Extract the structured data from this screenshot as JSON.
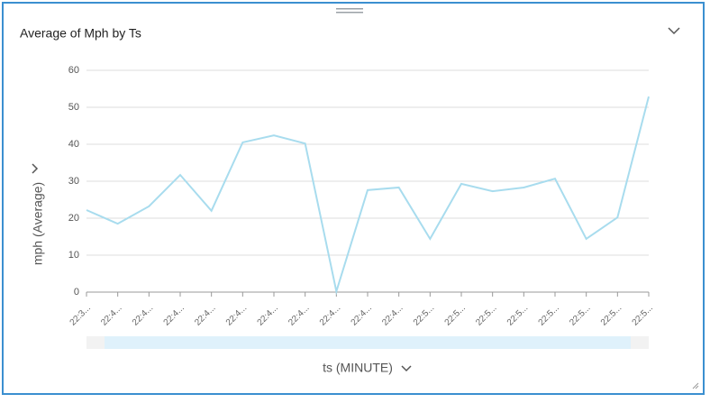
{
  "chart_data": {
    "type": "line",
    "title": "Average of Mph by Ts",
    "x_label": "ts (MINUTE)",
    "y_label": "mph (Average)",
    "categories": [
      "22:3...",
      "22:4...",
      "22:4...",
      "22:4...",
      "22:4...",
      "22:4...",
      "22:4...",
      "22:4...",
      "22:4...",
      "22:4...",
      "22:4...",
      "22:5...",
      "22:5...",
      "22:5...",
      "22:5...",
      "22:5...",
      "22:5...",
      "22:5...",
      "22:5..."
    ],
    "values": [
      22.2,
      18.5,
      23.2,
      31.7,
      22.0,
      40.5,
      42.4,
      40.2,
      0.2,
      27.6,
      28.3,
      14.4,
      29.3,
      27.3,
      28.3,
      30.7,
      14.4,
      20.2,
      52.9
    ],
    "color": "#a8dcee",
    "ylim": [
      0,
      60
    ],
    "yticks": [
      0,
      10,
      20,
      30,
      40,
      50,
      60
    ],
    "grid": true
  }
}
